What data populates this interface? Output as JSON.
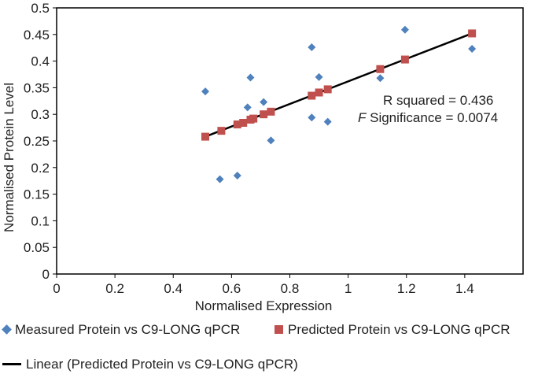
{
  "chart_data": {
    "type": "scatter",
    "xlabel": "Normalised Expression",
    "ylabel": "Normalised Protein Level",
    "xlim": [
      0,
      1.6
    ],
    "ylim": [
      0,
      0.5
    ],
    "xticks": [
      "0",
      "0.2",
      "0.4",
      "0.6",
      "0.8",
      "1",
      "1.2",
      "1.4"
    ],
    "yticks": [
      "0",
      "0.05",
      "0.1",
      "0.15",
      "0.2",
      "0.25",
      "0.3",
      "0.35",
      "0.4",
      "0.45",
      "0.5"
    ],
    "grid": false,
    "annotations": {
      "r_squared": "R squared = 0.436",
      "f_significance_label": "F",
      "f_significance_rest": " Significance = 0.0074"
    },
    "series": [
      {
        "name": "Measured Protein vs C9-LONG qPCR",
        "marker": "diamond",
        "color": "#4f81bd",
        "points": [
          [
            0.51,
            0.343
          ],
          [
            0.56,
            0.178
          ],
          [
            0.62,
            0.185
          ],
          [
            0.655,
            0.313
          ],
          [
            0.665,
            0.369
          ],
          [
            0.71,
            0.323
          ],
          [
            0.735,
            0.251
          ],
          [
            0.875,
            0.426
          ],
          [
            0.875,
            0.294
          ],
          [
            0.9,
            0.37
          ],
          [
            0.93,
            0.286
          ],
          [
            1.11,
            0.368
          ],
          [
            1.195,
            0.459
          ],
          [
            1.425,
            0.423
          ]
        ]
      },
      {
        "name": "Predicted Protein vs C9-LONG qPCR",
        "marker": "square",
        "color": "#c0504d",
        "points": [
          [
            0.51,
            0.258
          ],
          [
            0.565,
            0.269
          ],
          [
            0.62,
            0.281
          ],
          [
            0.64,
            0.284
          ],
          [
            0.665,
            0.29
          ],
          [
            0.675,
            0.292
          ],
          [
            0.71,
            0.3
          ],
          [
            0.735,
            0.305
          ],
          [
            0.875,
            0.335
          ],
          [
            0.9,
            0.341
          ],
          [
            0.93,
            0.347
          ],
          [
            1.11,
            0.385
          ],
          [
            1.195,
            0.403
          ],
          [
            1.425,
            0.452
          ]
        ]
      }
    ],
    "trendline": {
      "name": "Linear (Predicted Protein vs C9-LONG qPCR)",
      "color": "#000000",
      "from": [
        0.51,
        0.258
      ],
      "to": [
        1.425,
        0.452
      ]
    }
  }
}
